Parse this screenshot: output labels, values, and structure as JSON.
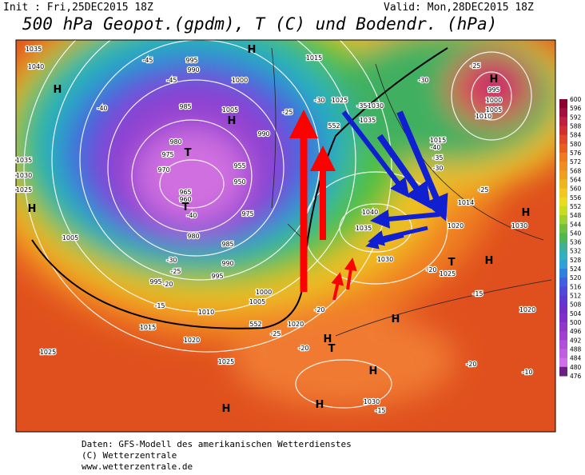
{
  "header": {
    "init": "Init : Fri,25DEC2015 18Z",
    "valid": "Valid: Mon,28DEC2015 18Z",
    "title": "500 hPa Geopot.(gpdm), T (C) und Bodendr. (hPa)"
  },
  "colorbar": {
    "labels": [
      600,
      596,
      592,
      588,
      584,
      580,
      576,
      572,
      568,
      564,
      560,
      556,
      552,
      548,
      544,
      540,
      536,
      532,
      528,
      524,
      520,
      516,
      512,
      508,
      504,
      500,
      496,
      492,
      488,
      484,
      480,
      476
    ]
  },
  "map": {
    "labels": [
      "1035",
      "1040",
      "H",
      "-45",
      "995",
      "990",
      "H",
      "1000",
      "-45",
      "-40",
      "985",
      "1005",
      "H",
      "990",
      "980",
      "975",
      "970",
      "T",
      "955",
      "950",
      "965",
      "960",
      "T",
      "-40",
      "975",
      "980",
      "985",
      "990",
      "995",
      "1000",
      "1005",
      "1010",
      "1015",
      "1020",
      "1025",
      "1025",
      "995",
      "-30",
      "-25",
      "-20",
      "-15",
      "1005",
      "1035",
      "1030",
      "1025",
      "H",
      "1015",
      "-30",
      "1025",
      "-35",
      "1030",
      "1035",
      "-25",
      "1015",
      "-40",
      "-35",
      "-30",
      "995",
      "1000",
      "1005",
      "1010",
      "H",
      "-25",
      "-30",
      "H",
      "1030",
      "1014",
      "-25",
      "1020",
      "1040",
      "1035",
      "1030",
      "T",
      "H",
      "1025",
      "-20",
      "-15",
      "1020",
      "H",
      "-20",
      "1020",
      "-25",
      "H",
      "T",
      "-20",
      "552",
      "552",
      "H",
      "1030",
      "-15",
      "H",
      "H",
      "-20",
      "-10"
    ]
  },
  "footer": {
    "lines": [
      "Daten: GFS-Modell des amerikanischen Wetterdienstes",
      "(C) Wetterzentrale",
      "www.wetterzentrale.de"
    ]
  }
}
